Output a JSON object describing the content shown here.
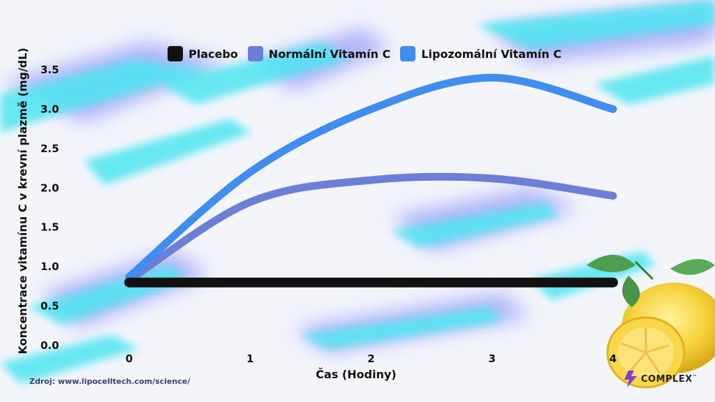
{
  "chart_data": {
    "type": "line",
    "title": "",
    "xlabel": "Čas (Hodiny)",
    "ylabel": "Koncentrace vitamínu C v krevní plazmě  (mg/dL)",
    "x": [
      0,
      1,
      2,
      3,
      4
    ],
    "x_ticks": [
      "0",
      "1",
      "2",
      "3",
      "4"
    ],
    "y_ticks": [
      "0.0",
      "0.5",
      "1.0",
      "1.5",
      "2.0",
      "2.5",
      "3.0",
      "3.5"
    ],
    "ylim": [
      0,
      3.5
    ],
    "xlim": [
      0,
      4
    ],
    "grid": false,
    "legend_position": "top",
    "series": [
      {
        "name": "Placebo",
        "color": "#111111",
        "values": [
          0.8,
          0.8,
          0.8,
          0.8,
          0.8
        ]
      },
      {
        "name": "Normální Vitamín C",
        "color": "#6b7fd6",
        "values": [
          0.83,
          1.82,
          2.1,
          2.12,
          1.9
        ]
      },
      {
        "name": "Lipozomální Vitamín C",
        "color": "#3f8df0",
        "values": [
          0.87,
          2.2,
          3.0,
          3.4,
          3.0
        ]
      }
    ]
  },
  "source_text": "Zdroj: www.lipocelltech.com/science/",
  "brand": {
    "name": "COMPLEX",
    "trademark": "™",
    "icon": "lightning-bolt-icon",
    "decoration": "lemon-illustration"
  },
  "colors": {
    "background": "#f4f5fb",
    "splash_cyan": "#4fe6f0",
    "splash_blue": "#6f7ef5"
  }
}
